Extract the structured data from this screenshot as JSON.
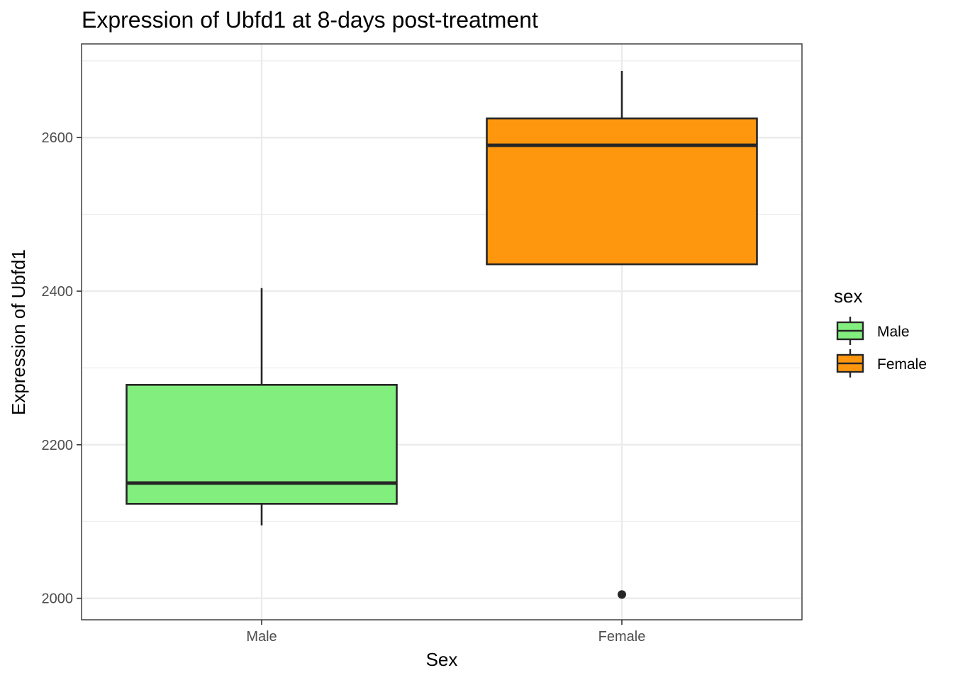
{
  "chart_data": {
    "type": "boxplot",
    "title": "Expression of Ubfd1 at 8-days post-treatment",
    "xlabel": "Sex",
    "ylabel": "Expression of Ubfd1",
    "categories": [
      "Male",
      "Female"
    ],
    "ylim": [
      1972,
      2722
    ],
    "y_ticks": [
      2000,
      2200,
      2400,
      2600
    ],
    "y_tick_labels": [
      "2000",
      "2200",
      "2400",
      "2600"
    ],
    "grid": true,
    "legend": {
      "title": "sex",
      "position": "right",
      "entries": [
        "Male",
        "Female"
      ]
    },
    "colors": {
      "Male": "#82ee7e",
      "Female": "#ff970e",
      "outline": "#262626",
      "grid": "#ebebeb",
      "panel_border": "#333333"
    },
    "boxes": [
      {
        "category": "Male",
        "min": 2095,
        "q1": 2123,
        "median": 2150,
        "q3": 2278,
        "max": 2404,
        "outliers": []
      },
      {
        "category": "Female",
        "min": 2435,
        "q1": 2435,
        "median": 2590,
        "q3": 2625,
        "max": 2687,
        "outliers": [
          2005
        ]
      }
    ]
  }
}
